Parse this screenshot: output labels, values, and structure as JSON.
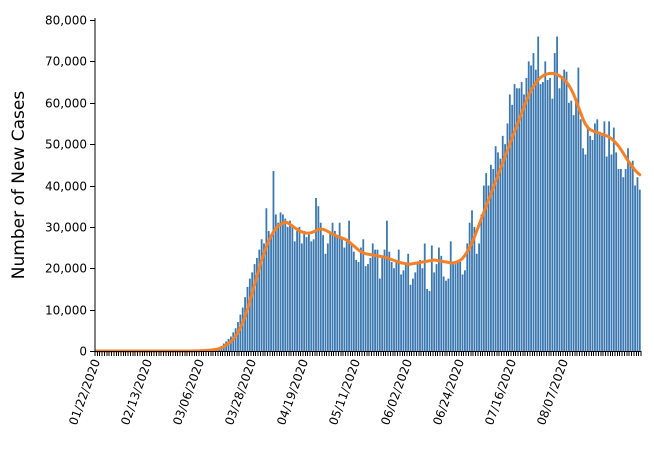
{
  "chart_data": {
    "type": "bar",
    "title": "",
    "xlabel": "",
    "ylabel": "Number of New Cases",
    "ylim": [
      0,
      80000
    ],
    "yticks": [
      0,
      10000,
      20000,
      30000,
      40000,
      50000,
      60000,
      70000,
      80000
    ],
    "ytick_labels": [
      "0",
      "10,000",
      "20,000",
      "30,000",
      "40,000",
      "50,000",
      "60,000",
      "70,000",
      "80,000"
    ],
    "x_start": "01/22/2020",
    "x_end": "08/28/2020",
    "xtick_labels": [
      "01/22/2020",
      "02/13/2020",
      "03/06/2020",
      "03/28/2020",
      "04/19/2020",
      "05/11/2020",
      "06/02/2020",
      "06/24/2020",
      "07/16/2020",
      "08/07/2020"
    ],
    "grid": false,
    "legend": "none",
    "colors": {
      "bars": "#3c78b0",
      "moving_average": "#f58025"
    },
    "series": [
      {
        "type": "bar",
        "values": [
          0,
          0,
          0,
          0,
          0,
          0,
          0,
          0,
          0,
          0,
          0,
          0,
          0,
          0,
          0,
          0,
          0,
          0,
          0,
          0,
          0,
          0,
          0,
          0,
          0,
          0,
          0,
          0,
          0,
          0,
          0,
          0,
          0,
          0,
          0,
          0,
          0,
          0,
          10,
          10,
          20,
          30,
          40,
          60,
          80,
          110,
          150,
          200,
          250,
          350,
          450,
          600,
          800,
          1200,
          1800,
          2300,
          2900,
          3500,
          4500,
          5500,
          7000,
          8800,
          10500,
          13000,
          15500,
          17500,
          19000,
          21000,
          22500,
          24500,
          27000,
          26000,
          34500,
          29000,
          28000,
          43500,
          33000,
          31000,
          33500,
          33000,
          32000,
          30000,
          31500,
          30000,
          26500,
          29000,
          30000,
          26000,
          29000,
          27500,
          28500,
          26500,
          27000,
          37000,
          35000,
          31000,
          28000,
          23500,
          26000,
          28500,
          31000,
          29000,
          28000,
          31000,
          27000,
          25000,
          26500,
          31500,
          26000,
          24000,
          22000,
          21500,
          25000,
          27000,
          20500,
          21000,
          22500,
          26000,
          24500,
          24500,
          17500,
          22500,
          24500,
          31500,
          24000,
          21500,
          20000,
          22000,
          24500,
          18500,
          19500,
          21000,
          23500,
          16000,
          17500,
          19000,
          21500,
          22000,
          20000,
          26000,
          15000,
          14500,
          25500,
          19000,
          21000,
          25000,
          23000,
          18000,
          17000,
          17500,
          26500,
          21000,
          21000,
          21500,
          21500,
          18500,
          19500,
          26000,
          31000,
          34000,
          30000,
          23500,
          26000,
          33000,
          40000,
          43000,
          40000,
          45000,
          44000,
          49500,
          48000,
          46500,
          52000,
          50000,
          55000,
          62000,
          59500,
          64500,
          63500,
          63500,
          65000,
          62000,
          66000,
          70000,
          69000,
          72000,
          68000,
          76000,
          64500,
          65000,
          70000,
          65500,
          66000,
          61000,
          72000,
          76000,
          63500,
          66000,
          68000,
          67500,
          60000,
          60500,
          57000,
          61000,
          68500,
          56000,
          49000,
          47500,
          54500,
          52000,
          51000,
          55000,
          56000,
          53000,
          52000,
          55500,
          47000,
          55500,
          47500,
          54000,
          48000,
          44000,
          44000,
          42000,
          44000,
          49000,
          45500,
          46000,
          40000,
          42000,
          39000
        ]
      },
      {
        "type": "line",
        "name": "",
        "values": [
          0,
          0,
          0,
          0,
          0,
          0,
          0,
          0,
          0,
          0,
          0,
          0,
          0,
          0,
          0,
          0,
          0,
          0,
          0,
          0,
          0,
          0,
          0,
          0,
          0,
          0,
          0,
          0,
          0,
          0,
          0,
          0,
          0,
          0,
          0,
          0,
          0,
          0,
          0,
          5,
          10,
          20,
          30,
          40,
          60,
          80,
          110,
          150,
          200,
          260,
          340,
          440,
          580,
          780,
          1050,
          1400,
          1800,
          2300,
          2900,
          3600,
          4500,
          5600,
          6900,
          8400,
          10100,
          12000,
          14000,
          16000,
          18000,
          20000,
          22000,
          23600,
          25200,
          26600,
          27800,
          28800,
          29600,
          30200,
          30600,
          30900,
          31200,
          31000,
          30600,
          30200,
          29800,
          29400,
          29000,
          28800,
          28600,
          28500,
          28500,
          28600,
          28800,
          29100,
          29400,
          29500,
          29400,
          29200,
          28900,
          28600,
          28300,
          28000,
          27700,
          27500,
          27300,
          27100,
          26800,
          26400,
          25900,
          25400,
          24900,
          24400,
          24000,
          23700,
          23500,
          23400,
          23300,
          23200,
          23100,
          23000,
          22900,
          22800,
          22700,
          22500,
          22300,
          22100,
          21900,
          21700,
          21500,
          21300,
          21200,
          21100,
          21000,
          21000,
          21100,
          21200,
          21300,
          21400,
          21500,
          21600,
          21700,
          21800,
          21900,
          22000,
          21900,
          21800,
          21700,
          21600,
          21500,
          21400,
          21300,
          21300,
          21400,
          21600,
          21900,
          22400,
          23100,
          24000,
          25000,
          26200,
          27500,
          29000,
          30500,
          32000,
          33500,
          35000,
          36500,
          38000,
          39500,
          41000,
          42500,
          44000,
          45500,
          47000,
          48500,
          50000,
          51500,
          53000,
          54500,
          56000,
          57500,
          59000,
          60500,
          61800,
          63000,
          64000,
          64800,
          65500,
          66100,
          66500,
          66800,
          67000,
          67100,
          67100,
          67000,
          66800,
          66500,
          66100,
          65600,
          65000,
          64200,
          63200,
          62000,
          60600,
          59000,
          57500,
          56000,
          54800,
          54000,
          53500,
          53200,
          53000,
          52800,
          52600,
          52400,
          52200,
          52000,
          51700,
          51300,
          50800,
          50200,
          49500,
          48700,
          47800,
          46900,
          46000,
          45200,
          44400,
          43700,
          43100,
          42600
        ]
      }
    ]
  }
}
